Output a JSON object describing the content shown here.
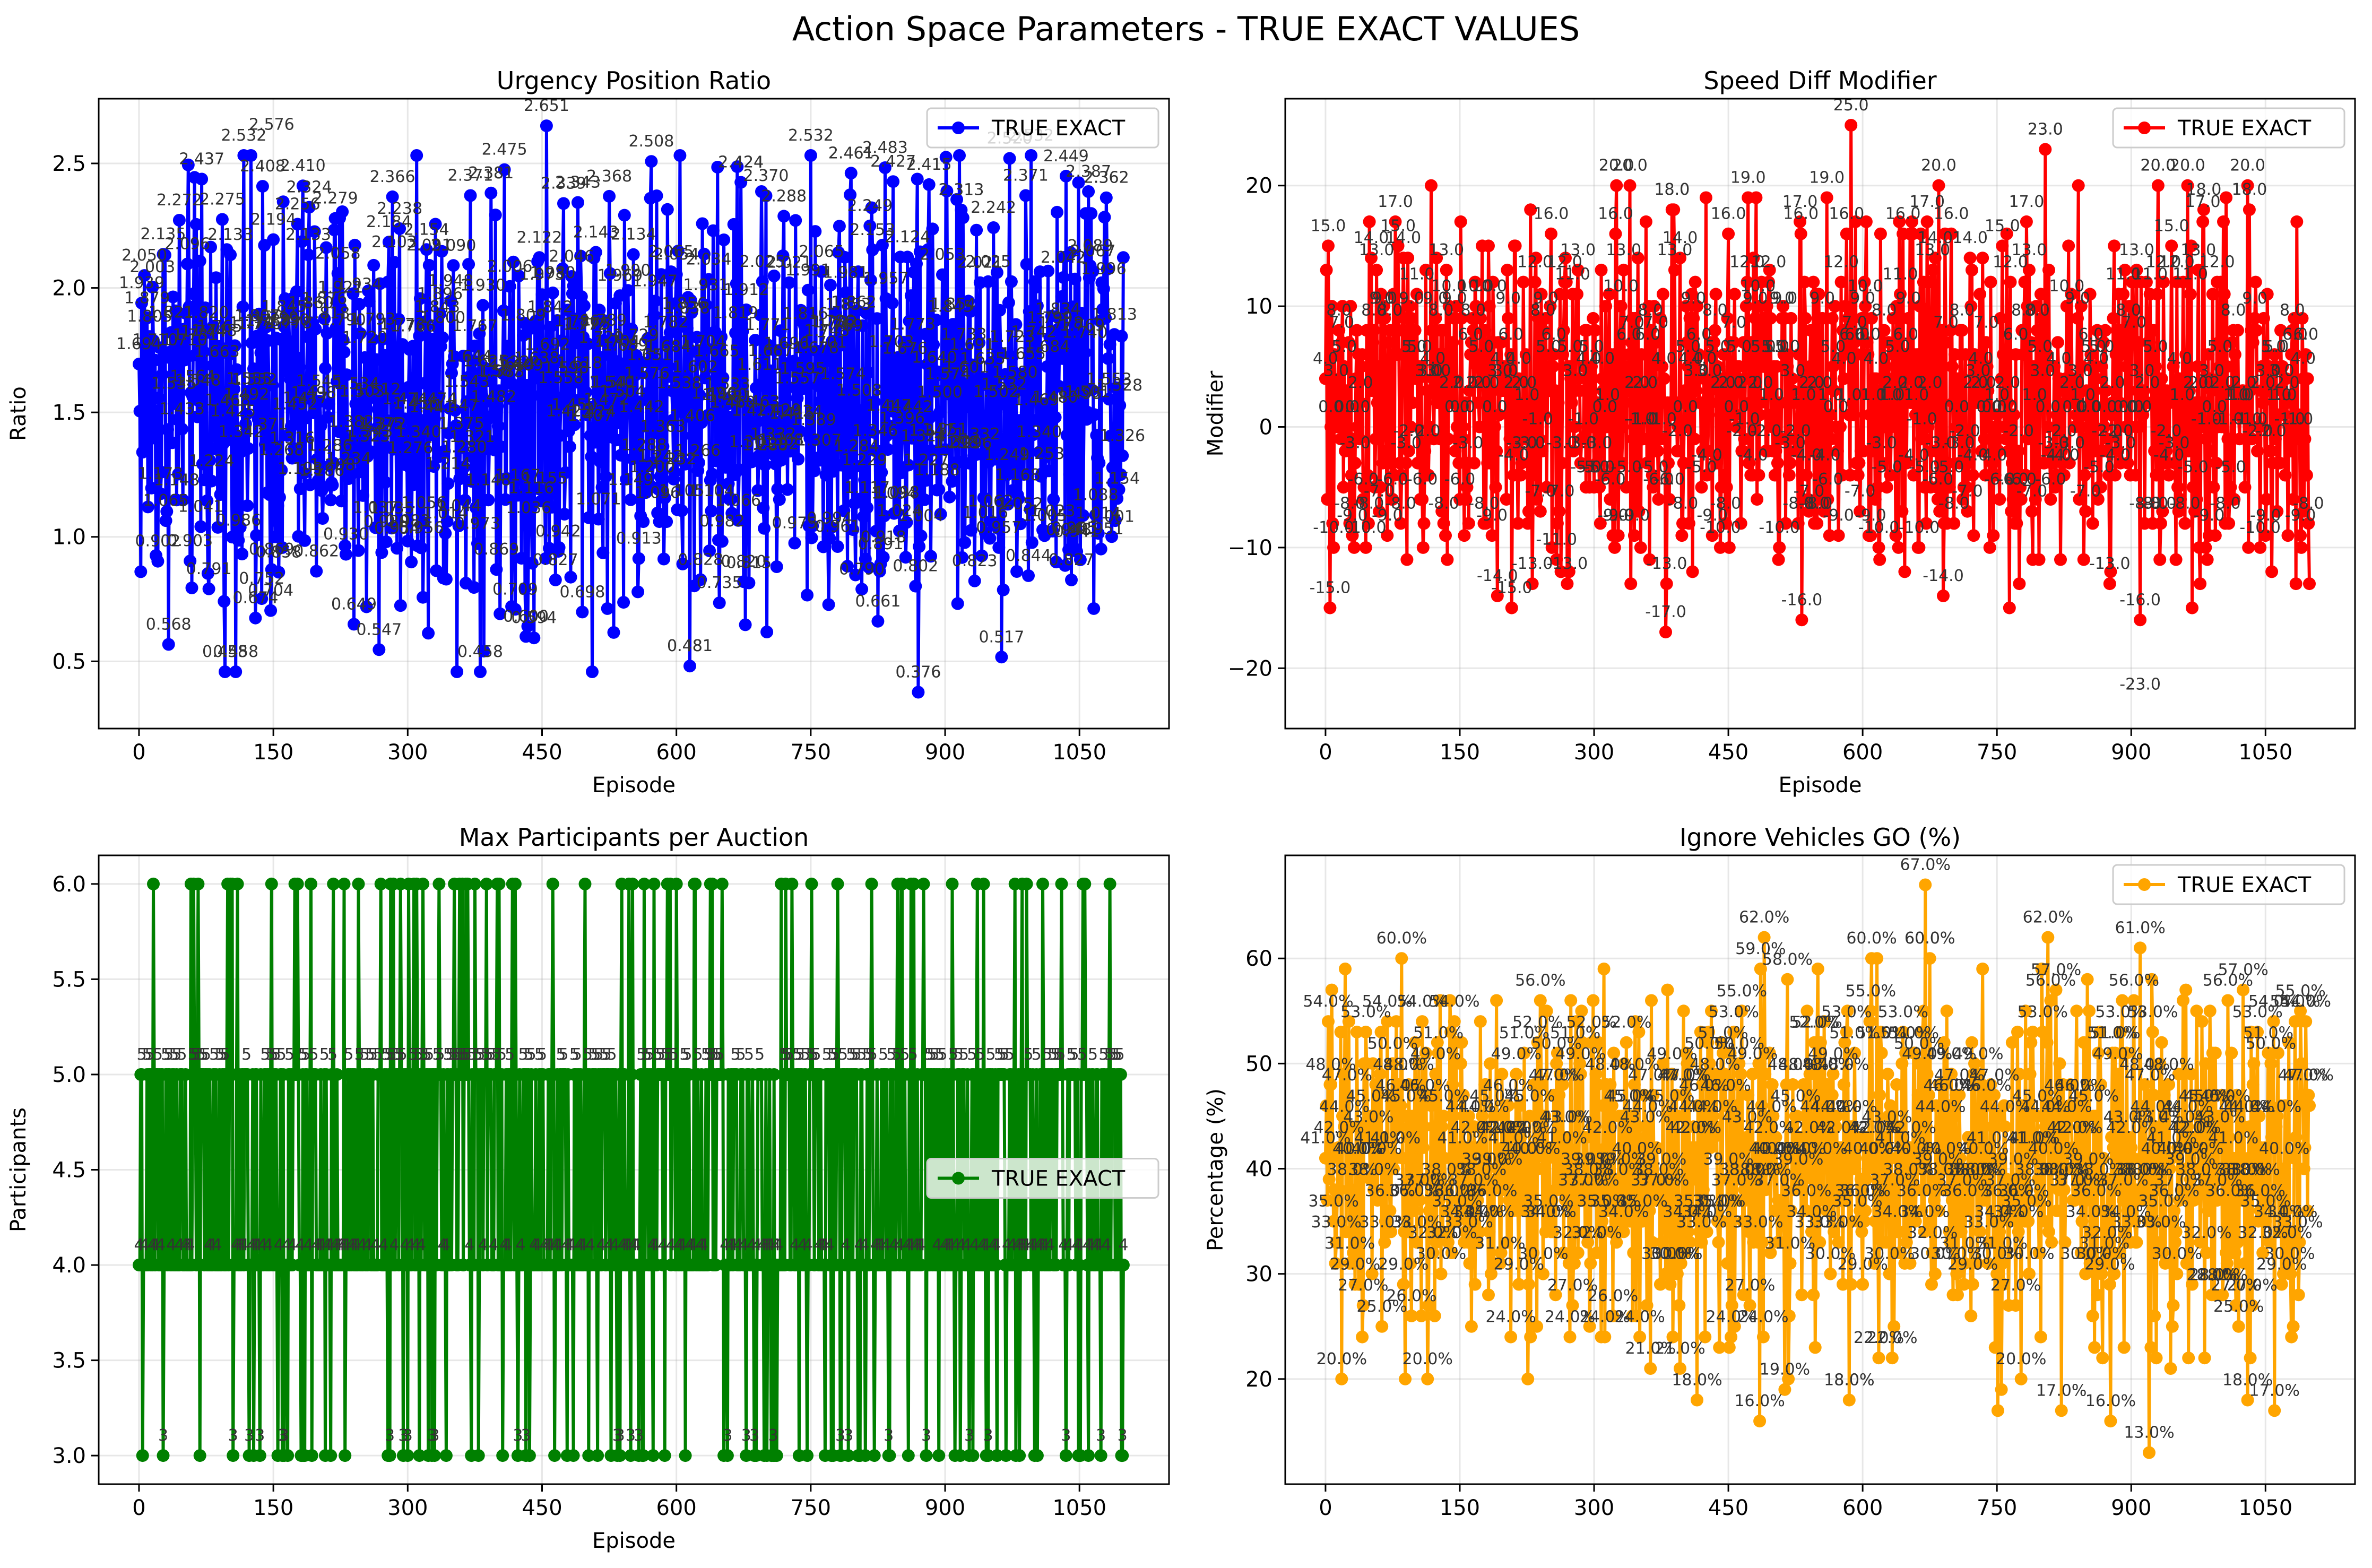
{
  "figure": {
    "title": "Action Space Parameters - TRUE EXACT VALUES"
  },
  "chart_data": [
    {
      "type": "line",
      "title": "Urgency Position Ratio",
      "xlabel": "Episode",
      "ylabel": "Ratio",
      "xlim": [
        -45,
        1150
      ],
      "ylim": [
        0.23,
        2.76
      ],
      "xticks": [
        0,
        150,
        300,
        450,
        600,
        750,
        900,
        1050
      ],
      "yticks": [
        0.5,
        1.0,
        1.5,
        2.0,
        2.5
      ],
      "ytick_labels": [
        "0.5",
        "1.0",
        "1.5",
        "2.0",
        "2.5"
      ],
      "grid": true,
      "legend": {
        "placement": "top-right",
        "label": "TRUE EXACT"
      },
      "color": "#0000ff",
      "label_decimals": 3,
      "label_suffix": "",
      "series": [
        {
          "name": "TRUE EXACT",
          "n": 1100,
          "baseline": 1.55,
          "spread": 0.42,
          "integer": false,
          "notable_points": [
            {
              "x": 70,
              "y": 2.437
            },
            {
              "x": 148,
              "y": 2.576
            },
            {
              "x": 455,
              "y": 2.651
            },
            {
              "x": 572,
              "y": 2.508
            },
            {
              "x": 833,
              "y": 2.483
            },
            {
              "x": 842,
              "y": 2.427
            },
            {
              "x": 972,
              "y": 2.52
            },
            {
              "x": 1080,
              "y": 2.362
            },
            {
              "x": 1060,
              "y": 2.387
            },
            {
              "x": 283,
              "y": 2.366
            },
            {
              "x": 370,
              "y": 2.371
            },
            {
              "x": 393,
              "y": 2.381
            },
            {
              "x": 490,
              "y": 2.343
            },
            {
              "x": 190,
              "y": 2.324
            },
            {
              "x": 672,
              "y": 2.424
            },
            {
              "x": 700,
              "y": 2.37
            },
            {
              "x": 795,
              "y": 2.461
            },
            {
              "x": 918,
              "y": 2.313
            },
            {
              "x": 870,
              "y": 0.376
            },
            {
              "x": 130,
              "y": 0.674
            },
            {
              "x": 137,
              "y": 0.752
            },
            {
              "x": 148,
              "y": 0.869
            },
            {
              "x": 240,
              "y": 0.649
            },
            {
              "x": 268,
              "y": 0.547
            },
            {
              "x": 615,
              "y": 0.481
            },
            {
              "x": 432,
              "y": 0.6
            }
          ]
        }
      ]
    },
    {
      "type": "line",
      "title": "Speed Diff Modifier",
      "xlabel": "Episode",
      "ylabel": "Modifier",
      "xlim": [
        -45,
        1150
      ],
      "ylim": [
        -25.0,
        27.2
      ],
      "xticks": [
        0,
        150,
        300,
        450,
        600,
        750,
        900,
        1050
      ],
      "yticks": [
        -20,
        -10,
        0,
        10,
        20
      ],
      "ytick_labels": [
        "−20",
        "−10",
        "0",
        "10",
        "20"
      ],
      "grid": true,
      "legend": {
        "placement": "top-right",
        "label": "TRUE EXACT"
      },
      "color": "#ff0000",
      "label_decimals": 1,
      "label_suffix": "",
      "series": [
        {
          "name": "TRUE EXACT",
          "n": 1100,
          "baseline": 2.0,
          "spread": 7.0,
          "integer": true,
          "notable_points": [
            {
              "x": 587,
              "y": 25.0
            },
            {
              "x": 804,
              "y": 23.0
            },
            {
              "x": 910,
              "y": -23.0
            },
            {
              "x": 910,
              "y": -16.0
            },
            {
              "x": 5,
              "y": -15.0
            },
            {
              "x": 208,
              "y": -15.0
            },
            {
              "x": 380,
              "y": -17.0
            },
            {
              "x": 532,
              "y": -16.0
            },
            {
              "x": 685,
              "y": 20.0
            },
            {
              "x": 1030,
              "y": 20.0
            },
            {
              "x": 340,
              "y": 20.0
            },
            {
              "x": 325,
              "y": 20.0
            },
            {
              "x": 930,
              "y": 20.0
            },
            {
              "x": 472,
              "y": 19.0
            },
            {
              "x": 560,
              "y": 19.0
            },
            {
              "x": 387,
              "y": 18.0
            },
            {
              "x": 530,
              "y": 17.0
            },
            {
              "x": 980,
              "y": 17.0
            }
          ]
        }
      ]
    },
    {
      "type": "line",
      "title": "Max Participants per Auction",
      "xlabel": "Episode",
      "ylabel": "Participants",
      "xlim": [
        -45,
        1150
      ],
      "ylim": [
        2.85,
        6.15
      ],
      "xticks": [
        0,
        150,
        300,
        450,
        600,
        750,
        900,
        1050
      ],
      "yticks": [
        3.0,
        3.5,
        4.0,
        4.5,
        5.0,
        5.5,
        6.0
      ],
      "ytick_labels": [
        "3.0",
        "3.5",
        "4.0",
        "4.5",
        "5.0",
        "5.5",
        "6.0"
      ],
      "grid": true,
      "legend": {
        "placement": "center-right",
        "label": "TRUE EXACT"
      },
      "color": "#008000",
      "label_decimals": 0,
      "label_suffix": "",
      "series": [
        {
          "name": "TRUE EXACT",
          "n": 1100,
          "discrete_values": [
            3,
            4,
            5,
            6
          ],
          "integer": true,
          "notable_points": [
            {
              "x": 0,
              "y": 4
            },
            {
              "x": 105,
              "y": 3
            },
            {
              "x": 160,
              "y": 3
            },
            {
              "x": 280,
              "y": 3
            },
            {
              "x": 295,
              "y": 3
            },
            {
              "x": 1099,
              "y": 4
            }
          ]
        }
      ]
    },
    {
      "type": "line",
      "title": "Ignore Vehicles GO (%)",
      "xlabel": "",
      "ylabel": "Percentage (%)",
      "xlim": [
        -45,
        1150
      ],
      "ylim": [
        10.0,
        69.8
      ],
      "xticks": [
        0,
        150,
        300,
        450,
        600,
        750,
        900,
        1050
      ],
      "yticks": [
        20,
        30,
        40,
        50,
        60
      ],
      "ytick_labels": [
        "20",
        "30",
        "40",
        "50",
        "60"
      ],
      "grid": true,
      "legend": {
        "placement": "top-right",
        "label": "TRUE EXACT"
      },
      "color": "#ffa500",
      "label_decimals": 1,
      "label_suffix": "%",
      "series": [
        {
          "name": "TRUE EXACT",
          "n": 1100,
          "baseline": 40.0,
          "spread": 8.0,
          "integer": true,
          "notable_points": [
            {
              "x": 670,
              "y": 67.0
            },
            {
              "x": 490,
              "y": 62.0
            },
            {
              "x": 85,
              "y": 60.0
            },
            {
              "x": 610,
              "y": 60.0
            },
            {
              "x": 675,
              "y": 60.0
            },
            {
              "x": 910,
              "y": 61.0
            },
            {
              "x": 920,
              "y": 13.0
            },
            {
              "x": 485,
              "y": 16.0
            },
            {
              "x": 18,
              "y": 20.0
            },
            {
              "x": 415,
              "y": 18.0
            },
            {
              "x": 585,
              "y": 18.0
            },
            {
              "x": 1030,
              "y": 18.0
            },
            {
              "x": 1060,
              "y": 17.0
            },
            {
              "x": 877,
              "y": 16.0
            },
            {
              "x": 1025,
              "y": 57.0
            },
            {
              "x": 1095,
              "y": 54.0
            }
          ]
        }
      ]
    }
  ]
}
